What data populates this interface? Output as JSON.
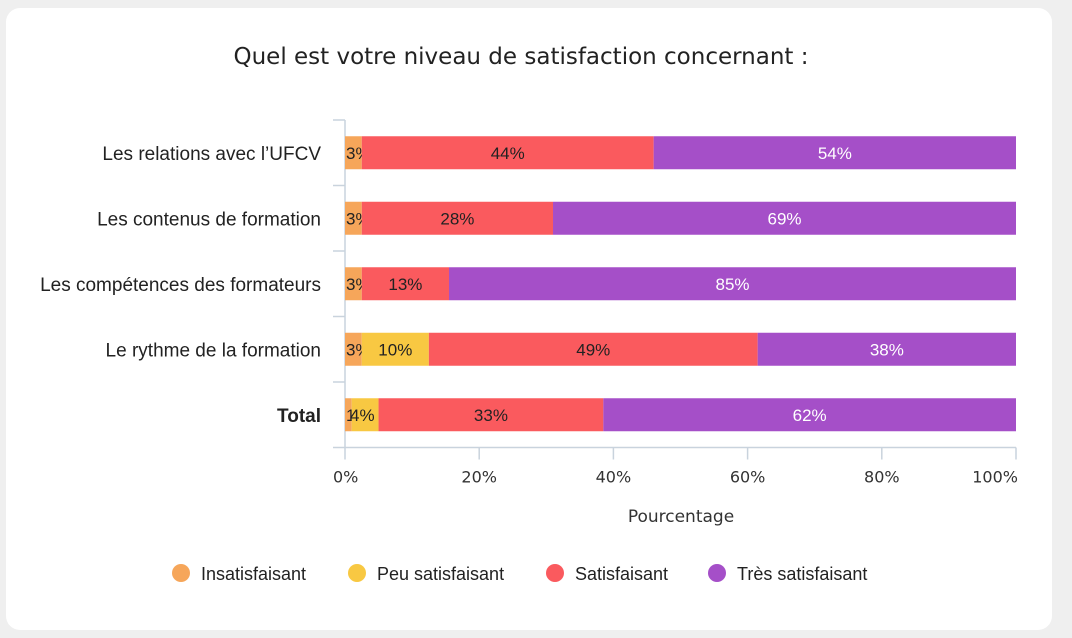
{
  "chart_data": {
    "type": "bar",
    "orientation": "horizontal",
    "stacked": true,
    "title": "Quel est votre niveau de satisfaction concernant :",
    "xlabel": "Pourcentage",
    "ylabel": "",
    "xlim": [
      0,
      100
    ],
    "x_ticks": [
      "0%",
      "20%",
      "40%",
      "60%",
      "80%",
      "100%"
    ],
    "grid": false,
    "legend_position": "bottom",
    "categories": [
      "Les relations avec l’UFCV",
      "Les contenus de formation",
      "Les compétences des formateurs",
      "Le rythme de la formation",
      "Total"
    ],
    "series": [
      {
        "name": "Insatisfaisant",
        "color": "#f6a65a",
        "values": [
          2.5,
          2.5,
          2.5,
          2.5,
          1
        ],
        "labels": [
          "3%",
          "3%",
          "3%",
          "3%",
          "1%"
        ],
        "label_color": "#222222"
      },
      {
        "name": "Peu satisfaisant",
        "color": "#f8c842",
        "values": [
          0,
          0,
          0,
          10,
          4
        ],
        "labels": [
          "",
          "",
          "",
          "10%",
          "4%"
        ],
        "label_color": "#222222"
      },
      {
        "name": "Satisfaisant",
        "color": "#fa5a5e",
        "values": [
          43.5,
          28.5,
          13,
          49,
          33.5
        ],
        "labels": [
          "44%",
          "28%",
          "13%",
          "49%",
          "33%"
        ],
        "label_color": "#222222"
      },
      {
        "name": "Très satisfaisant",
        "color": "#a54fc8",
        "values": [
          54,
          69,
          84.5,
          38.5,
          61.5
        ],
        "labels": [
          "54%",
          "69%",
          "85%",
          "38%",
          "62%"
        ],
        "label_color": "#ffffff"
      }
    ],
    "bold_categories": [
      "Total"
    ]
  }
}
